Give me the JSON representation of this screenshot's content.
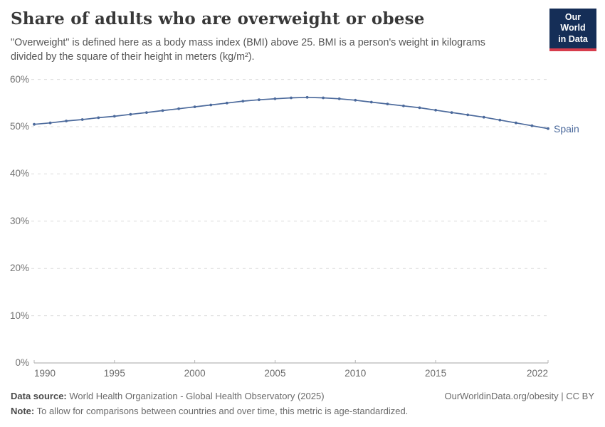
{
  "header": {
    "title": "Share of adults who are overweight or obese",
    "subtitle": "\"Overweight\" is defined here as a body mass index (BMI) above 25. BMI is a person's weight in kilograms divided by the square of their height in meters (kg/m²).",
    "logo": {
      "line1": "Our World",
      "line2": "in Data",
      "bg_color": "#152e57",
      "accent_color": "#d73c4c"
    }
  },
  "chart_data": {
    "type": "line",
    "title": "Share of adults who are overweight or obese",
    "x": [
      1990,
      1991,
      1992,
      1993,
      1994,
      1995,
      1996,
      1997,
      1998,
      1999,
      2000,
      2001,
      2002,
      2003,
      2004,
      2005,
      2006,
      2007,
      2008,
      2009,
      2010,
      2011,
      2012,
      2013,
      2014,
      2015,
      2016,
      2017,
      2018,
      2019,
      2020,
      2021,
      2022
    ],
    "series": [
      {
        "name": "Spain",
        "color": "#4c6a9c",
        "values": [
          50.5,
          50.8,
          51.2,
          51.5,
          51.9,
          52.2,
          52.6,
          53.0,
          53.4,
          53.8,
          54.2,
          54.6,
          55.0,
          55.4,
          55.7,
          55.9,
          56.1,
          56.2,
          56.1,
          55.9,
          55.6,
          55.2,
          54.8,
          54.4,
          54.0,
          53.5,
          53.0,
          52.5,
          52.0,
          51.4,
          50.8,
          50.2,
          49.6
        ]
      }
    ],
    "xlabel": "",
    "ylabel": "",
    "ylim": [
      0,
      60
    ],
    "yticks": [
      0,
      10,
      20,
      30,
      40,
      50,
      60
    ],
    "ytick_suffix": "%",
    "xticks": [
      1990,
      1995,
      2000,
      2005,
      2010,
      2015,
      2022
    ],
    "grid": "horizontal-dashed",
    "legend_position": "end-of-line",
    "grid_color": "#dcdcdc",
    "axis_color": "#a6a6a6",
    "tick_color": "#b5b5b5"
  },
  "footer": {
    "data_source_label": "Data source:",
    "data_source_text": "World Health Organization - Global Health Observatory (2025)",
    "credit": "OurWorldinData.org/obesity | CC BY",
    "note_label": "Note:",
    "note_text": "To allow for comparisons between countries and over time, this metric is age-standardized."
  }
}
